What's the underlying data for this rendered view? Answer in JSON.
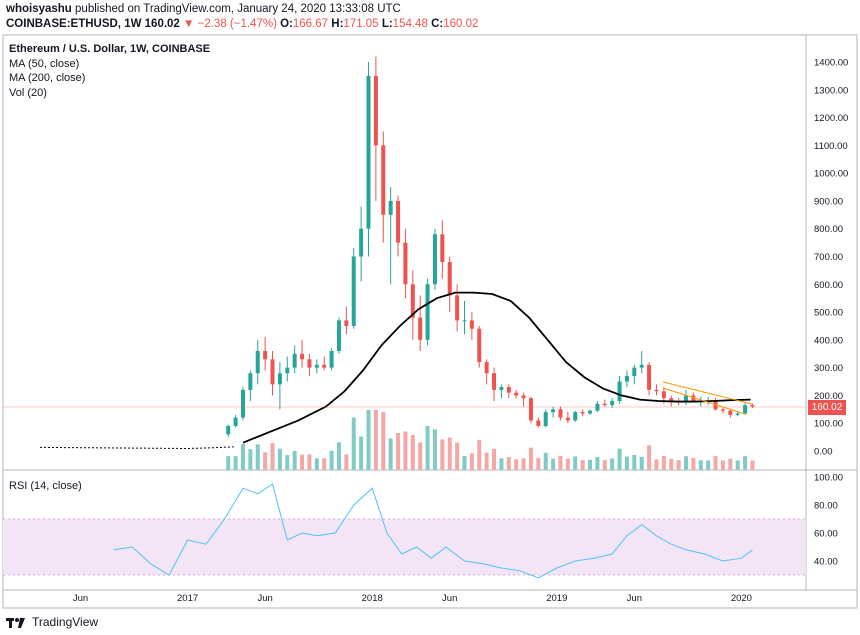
{
  "header": {
    "author": "whoisyashu",
    "published": "published on TradingView.com, January 24, 2020 13:33:08 UTC",
    "symbol": "COINBASE:ETHUSD, 1W",
    "price": "160.02",
    "change": "▼ −2.38 (−1.47%)",
    "o_label": "O:",
    "o": "166.67",
    "h_label": "H:",
    "h": "171.05",
    "l_label": "L:",
    "l": "154.48",
    "c_label": "C:",
    "c": "160.02"
  },
  "legend": {
    "title": "Ethereum / U.S. Dollar, 1W, COINBASE",
    "ma50": "MA (50, close)",
    "ma200": "MA (200, close)",
    "vol": "Vol (20)"
  },
  "rsi_label": "RSI (14, close)",
  "price_badge": "160.02",
  "footer": {
    "brand": "TradingView"
  },
  "colors": {
    "up": "#26a69a",
    "down": "#ef5350",
    "vol_up": "#80cbc4",
    "vol_down": "#f5a6a6",
    "rsi": "#4fc3f7",
    "rsi_band": "#f3e5f5",
    "ma": "#000000",
    "wedge": "#ff9800"
  },
  "chart_data": [
    {
      "type": "candlestick",
      "title": "Ethereum / U.S. Dollar, 1W, COINBASE",
      "x_ticks": [
        "Jun",
        "2017",
        "Jun",
        "2018",
        "Jun",
        "2019",
        "Jun",
        "2020"
      ],
      "x_tick_times": [
        2016.42,
        2017.0,
        2017.42,
        2018.0,
        2018.42,
        2019.0,
        2019.42,
        2020.0
      ],
      "y_ticks": [
        "1400.00",
        "1300.00",
        "1200.00",
        "1100.00",
        "1000.00",
        "900.00",
        "800.00",
        "700.00",
        "600.00",
        "500.00",
        "400.00",
        "300.00",
        "200.00",
        "100.00",
        "0.00"
      ],
      "ylim": [
        -50,
        1440
      ],
      "xlim": [
        2016.0,
        2020.35
      ],
      "last_price": 160.02,
      "series": [
        {
          "name": "MA (200, close)",
          "kind": "line",
          "t": [
            2017.3,
            2017.45,
            2017.6,
            2017.75,
            2017.85,
            2017.95,
            2018.05,
            2018.15,
            2018.25,
            2018.35,
            2018.45,
            2018.55,
            2018.65,
            2018.75,
            2018.85,
            2018.95,
            2019.05,
            2019.15,
            2019.25,
            2019.35,
            2019.45,
            2019.55,
            2019.65,
            2019.75,
            2019.85,
            2019.95,
            2020.05
          ],
          "v": [
            30,
            70,
            110,
            160,
            215,
            290,
            380,
            450,
            510,
            550,
            570,
            570,
            565,
            540,
            480,
            400,
            320,
            265,
            225,
            200,
            185,
            180,
            178,
            178,
            180,
            183,
            185
          ]
        },
        {
          "name": "MA (50, close)",
          "kind": "line",
          "t": [
            2016.2,
            2016.4,
            2016.6,
            2016.8,
            2017.0,
            2017.15,
            2017.25
          ],
          "v": [
            13,
            12,
            11,
            10,
            9,
            12,
            15
          ]
        }
      ],
      "candles": [
        {
          "t": 2017.22,
          "o": 60,
          "h": 95,
          "l": 50,
          "c": 90
        },
        {
          "t": 2017.26,
          "o": 90,
          "h": 130,
          "l": 85,
          "c": 120
        },
        {
          "t": 2017.3,
          "o": 120,
          "h": 230,
          "l": 110,
          "c": 220
        },
        {
          "t": 2017.34,
          "o": 220,
          "h": 290,
          "l": 180,
          "c": 280
        },
        {
          "t": 2017.38,
          "o": 280,
          "h": 400,
          "l": 240,
          "c": 360
        },
        {
          "t": 2017.42,
          "o": 360,
          "h": 410,
          "l": 290,
          "c": 330
        },
        {
          "t": 2017.46,
          "o": 330,
          "h": 360,
          "l": 200,
          "c": 240
        },
        {
          "t": 2017.5,
          "o": 240,
          "h": 320,
          "l": 150,
          "c": 280
        },
        {
          "t": 2017.54,
          "o": 280,
          "h": 340,
          "l": 250,
          "c": 300
        },
        {
          "t": 2017.58,
          "o": 300,
          "h": 380,
          "l": 280,
          "c": 350
        },
        {
          "t": 2017.62,
          "o": 350,
          "h": 400,
          "l": 300,
          "c": 330
        },
        {
          "t": 2017.66,
          "o": 330,
          "h": 350,
          "l": 270,
          "c": 300
        },
        {
          "t": 2017.7,
          "o": 300,
          "h": 330,
          "l": 280,
          "c": 310
        },
        {
          "t": 2017.74,
          "o": 310,
          "h": 340,
          "l": 290,
          "c": 300
        },
        {
          "t": 2017.78,
          "o": 300,
          "h": 370,
          "l": 290,
          "c": 360
        },
        {
          "t": 2017.82,
          "o": 360,
          "h": 480,
          "l": 350,
          "c": 470
        },
        {
          "t": 2017.86,
          "o": 470,
          "h": 520,
          "l": 420,
          "c": 450
        },
        {
          "t": 2017.9,
          "o": 450,
          "h": 730,
          "l": 440,
          "c": 700
        },
        {
          "t": 2017.94,
          "o": 700,
          "h": 880,
          "l": 610,
          "c": 800
        },
        {
          "t": 2017.98,
          "o": 800,
          "h": 1400,
          "l": 700,
          "c": 1350
        },
        {
          "t": 2018.02,
          "o": 1350,
          "h": 1420,
          "l": 900,
          "c": 1100
        },
        {
          "t": 2018.06,
          "o": 1100,
          "h": 1150,
          "l": 750,
          "c": 850
        },
        {
          "t": 2018.1,
          "o": 850,
          "h": 950,
          "l": 600,
          "c": 900
        },
        {
          "t": 2018.14,
          "o": 900,
          "h": 920,
          "l": 700,
          "c": 750
        },
        {
          "t": 2018.18,
          "o": 750,
          "h": 800,
          "l": 550,
          "c": 600
        },
        {
          "t": 2018.22,
          "o": 600,
          "h": 650,
          "l": 400,
          "c": 480
        },
        {
          "t": 2018.26,
          "o": 480,
          "h": 560,
          "l": 360,
          "c": 400
        },
        {
          "t": 2018.3,
          "o": 400,
          "h": 620,
          "l": 380,
          "c": 600
        },
        {
          "t": 2018.34,
          "o": 600,
          "h": 800,
          "l": 580,
          "c": 780
        },
        {
          "t": 2018.38,
          "o": 780,
          "h": 830,
          "l": 620,
          "c": 680
        },
        {
          "t": 2018.42,
          "o": 680,
          "h": 700,
          "l": 500,
          "c": 560
        },
        {
          "t": 2018.46,
          "o": 560,
          "h": 600,
          "l": 430,
          "c": 470
        },
        {
          "t": 2018.5,
          "o": 470,
          "h": 540,
          "l": 420,
          "c": 470
        },
        {
          "t": 2018.54,
          "o": 470,
          "h": 500,
          "l": 400,
          "c": 440
        },
        {
          "t": 2018.58,
          "o": 440,
          "h": 450,
          "l": 300,
          "c": 320
        },
        {
          "t": 2018.62,
          "o": 320,
          "h": 330,
          "l": 240,
          "c": 280
        },
        {
          "t": 2018.66,
          "o": 280,
          "h": 300,
          "l": 180,
          "c": 220
        },
        {
          "t": 2018.7,
          "o": 220,
          "h": 240,
          "l": 190,
          "c": 230
        },
        {
          "t": 2018.74,
          "o": 230,
          "h": 240,
          "l": 190,
          "c": 210
        },
        {
          "t": 2018.78,
          "o": 210,
          "h": 220,
          "l": 190,
          "c": 200
        },
        {
          "t": 2018.82,
          "o": 200,
          "h": 210,
          "l": 160,
          "c": 190
        },
        {
          "t": 2018.86,
          "o": 190,
          "h": 195,
          "l": 100,
          "c": 110
        },
        {
          "t": 2018.9,
          "o": 110,
          "h": 120,
          "l": 85,
          "c": 90
        },
        {
          "t": 2018.94,
          "o": 90,
          "h": 150,
          "l": 85,
          "c": 140
        },
        {
          "t": 2018.98,
          "o": 140,
          "h": 160,
          "l": 120,
          "c": 150
        },
        {
          "t": 2019.02,
          "o": 150,
          "h": 160,
          "l": 110,
          "c": 120
        },
        {
          "t": 2019.06,
          "o": 120,
          "h": 140,
          "l": 100,
          "c": 110
        },
        {
          "t": 2019.1,
          "o": 110,
          "h": 145,
          "l": 105,
          "c": 140
        },
        {
          "t": 2019.14,
          "o": 140,
          "h": 150,
          "l": 125,
          "c": 135
        },
        {
          "t": 2019.18,
          "o": 135,
          "h": 150,
          "l": 130,
          "c": 145
        },
        {
          "t": 2019.22,
          "o": 145,
          "h": 180,
          "l": 140,
          "c": 170
        },
        {
          "t": 2019.26,
          "o": 170,
          "h": 185,
          "l": 160,
          "c": 165
        },
        {
          "t": 2019.3,
          "o": 165,
          "h": 190,
          "l": 155,
          "c": 180
        },
        {
          "t": 2019.34,
          "o": 180,
          "h": 270,
          "l": 170,
          "c": 250
        },
        {
          "t": 2019.38,
          "o": 250,
          "h": 290,
          "l": 230,
          "c": 270
        },
        {
          "t": 2019.42,
          "o": 270,
          "h": 310,
          "l": 240,
          "c": 300
        },
        {
          "t": 2019.46,
          "o": 300,
          "h": 360,
          "l": 280,
          "c": 310
        },
        {
          "t": 2019.5,
          "o": 310,
          "h": 320,
          "l": 200,
          "c": 220
        },
        {
          "t": 2019.54,
          "o": 220,
          "h": 240,
          "l": 200,
          "c": 215
        },
        {
          "t": 2019.58,
          "o": 215,
          "h": 230,
          "l": 170,
          "c": 190
        },
        {
          "t": 2019.62,
          "o": 190,
          "h": 200,
          "l": 160,
          "c": 180
        },
        {
          "t": 2019.66,
          "o": 180,
          "h": 190,
          "l": 165,
          "c": 175
        },
        {
          "t": 2019.7,
          "o": 175,
          "h": 220,
          "l": 165,
          "c": 200
        },
        {
          "t": 2019.74,
          "o": 200,
          "h": 210,
          "l": 175,
          "c": 180
        },
        {
          "t": 2019.78,
          "o": 180,
          "h": 195,
          "l": 160,
          "c": 180
        },
        {
          "t": 2019.82,
          "o": 180,
          "h": 195,
          "l": 165,
          "c": 180
        },
        {
          "t": 2019.86,
          "o": 180,
          "h": 190,
          "l": 145,
          "c": 150
        },
        {
          "t": 2019.9,
          "o": 150,
          "h": 155,
          "l": 135,
          "c": 145
        },
        {
          "t": 2019.94,
          "o": 145,
          "h": 150,
          "l": 120,
          "c": 130
        },
        {
          "t": 2019.98,
          "o": 130,
          "h": 145,
          "l": 125,
          "c": 135
        },
        {
          "t": 2020.02,
          "o": 135,
          "h": 175,
          "l": 130,
          "c": 165
        },
        {
          "t": 2020.06,
          "o": 165,
          "h": 171,
          "l": 154,
          "c": 160
        }
      ]
    },
    {
      "type": "line",
      "title": "RSI (14, close)",
      "y_ticks": [
        "100.00",
        "80.00",
        "60.00",
        "40.00"
      ],
      "ylim": [
        25,
        100
      ],
      "band": [
        30,
        70
      ],
      "series": [
        {
          "name": "RSI (14, close)",
          "t": [
            2016.6,
            2016.7,
            2016.8,
            2016.9,
            2017.0,
            2017.1,
            2017.2,
            2017.3,
            2017.38,
            2017.46,
            2017.54,
            2017.62,
            2017.7,
            2017.8,
            2017.9,
            2018.0,
            2018.08,
            2018.16,
            2018.24,
            2018.32,
            2018.4,
            2018.5,
            2018.6,
            2018.7,
            2018.8,
            2018.9,
            2019.0,
            2019.1,
            2019.2,
            2019.3,
            2019.38,
            2019.46,
            2019.54,
            2019.62,
            2019.7,
            2019.8,
            2019.9,
            2020.0,
            2020.06
          ],
          "v": [
            48,
            50,
            38,
            30,
            55,
            52,
            70,
            92,
            88,
            95,
            55,
            60,
            58,
            60,
            80,
            92,
            60,
            45,
            50,
            42,
            50,
            40,
            38,
            35,
            33,
            28,
            35,
            40,
            42,
            45,
            58,
            66,
            58,
            52,
            48,
            45,
            40,
            42,
            48
          ]
        }
      ]
    }
  ]
}
